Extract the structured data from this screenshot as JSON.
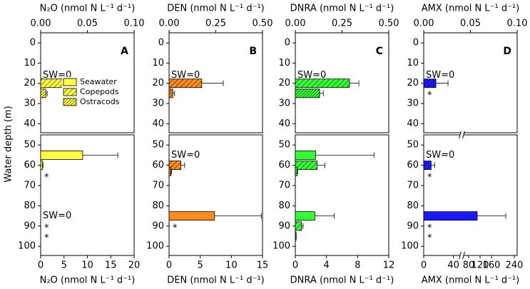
{
  "chart_data": {
    "type": "bar",
    "ylabel": "Water depth (m)",
    "upper_ylim": [
      -5,
      44.5
    ],
    "upper_yticks": [
      0,
      10,
      20,
      30,
      40
    ],
    "lower_ylim": [
      45,
      104.5
    ],
    "lower_yticks": [
      50,
      60,
      70,
      80,
      90,
      100
    ],
    "legend": [
      {
        "name": "Seawater"
      },
      {
        "name": "Copepods"
      },
      {
        "name": "Ostracods"
      }
    ],
    "panels": [
      {
        "label": "A",
        "color": "#ffff40",
        "top_xlabel": "N₂O (nmol N L⁻¹ d⁻¹)",
        "top_xlim": [
          0,
          0.1
        ],
        "top_xticks": [
          {
            "value": 0,
            "label": "0.00"
          },
          {
            "value": 0.05,
            "label": "0.05"
          },
          {
            "value": 0.1,
            "label": "0.10"
          }
        ],
        "bottom_xlabel": "N₂O (nmol N L⁻¹ d⁻¹)",
        "bottom_xlim": [
          0,
          20
        ],
        "bottom_xticks": [
          0,
          5,
          10,
          15,
          20
        ],
        "upper": {
          "bars": [
            {
              "kind": 1,
              "depth": 20,
              "value": 0.035,
              "error": 0.0065
            },
            {
              "kind": 2,
              "depth": 25,
              "value": 0.0055,
              "error": 0.0015
            }
          ],
          "annotations": [
            {
              "text": "SW=0",
              "depth": 16
            }
          ]
        },
        "lower": {
          "bars": [
            {
              "kind": 0,
              "depth": 55,
              "value": 9,
              "error": 7.5
            },
            {
              "kind": 1,
              "depth": 60,
              "value": 0.4,
              "error": 0.1
            }
          ],
          "annotations": [
            {
              "text": "*",
              "depth": 65
            },
            {
              "text": "SW=0",
              "depth": 85
            },
            {
              "text": "*",
              "depth": 90
            },
            {
              "text": "*",
              "depth": 95
            }
          ]
        }
      },
      {
        "label": "B",
        "color": "#ff8c1a",
        "top_xlabel": "DEN (nmol N L⁻¹ d⁻¹)",
        "top_xlim": [
          0,
          0.5
        ],
        "top_xticks": [
          {
            "value": 0,
            "label": "0.00"
          },
          {
            "value": 0.25,
            "label": "0.25"
          },
          {
            "value": 0.5,
            "label": "0.50"
          }
        ],
        "bottom_xlabel": "DEN (nmol N L⁻¹ d⁻¹)",
        "bottom_xlim": [
          0,
          15
        ],
        "bottom_xticks": [
          0,
          5,
          10,
          15
        ],
        "upper": {
          "bars": [
            {
              "kind": 1,
              "depth": 20,
              "value": 0.175,
              "error": 0.115
            },
            {
              "kind": 2,
              "depth": 25,
              "value": 0.02,
              "error": 0.01
            }
          ],
          "annotations": [
            {
              "text": "SW=0",
              "depth": 16
            }
          ]
        },
        "lower": {
          "bars": [
            {
              "kind": 1,
              "depth": 60,
              "value": 1.9,
              "error": 0.6
            },
            {
              "kind": 2,
              "depth": 63,
              "value": 0.3,
              "error": 0.1
            },
            {
              "kind": 0,
              "depth": 85,
              "value": 7.3,
              "error": 7.5
            }
          ],
          "annotations": [
            {
              "text": "SW=0",
              "depth": 55
            },
            {
              "text": "*",
              "depth": 90
            }
          ]
        }
      },
      {
        "label": "C",
        "color": "#33ff33",
        "top_xlabel": "DNRA (nmol N L⁻¹ d⁻¹)",
        "top_xlim": [
          0,
          0.5
        ],
        "top_xticks": [
          {
            "value": 0,
            "label": "0.00"
          },
          {
            "value": 0.25,
            "label": "0.25"
          },
          {
            "value": 0.5,
            "label": "0.50"
          }
        ],
        "bottom_xlabel": "DNRA (nmol N L⁻¹ d⁻¹)",
        "bottom_xlim": [
          0,
          12
        ],
        "bottom_xticks": [
          0,
          4,
          8,
          12
        ],
        "upper": {
          "bars": [
            {
              "kind": 1,
              "depth": 20,
              "value": 0.29,
              "error": 0.05
            },
            {
              "kind": 2,
              "depth": 25,
              "value": 0.13,
              "error": 0.02
            }
          ],
          "annotations": [
            {
              "text": "SW=0",
              "depth": 16
            }
          ]
        },
        "lower": {
          "bars": [
            {
              "kind": 0,
              "depth": 55,
              "value": 2.6,
              "error": 7.5
            },
            {
              "kind": 1,
              "depth": 60,
              "value": 2.8,
              "error": 1
            },
            {
              "kind": 2,
              "depth": 63,
              "value": 0.25,
              "error": 0.05
            },
            {
              "kind": 0,
              "depth": 85,
              "value": 2.5,
              "error": 2.5
            },
            {
              "kind": 1,
              "depth": 90,
              "value": 0.8,
              "error": 0.2
            },
            {
              "kind": 2,
              "depth": 95,
              "value": 0.1,
              "error": 0.02
            }
          ],
          "annotations": []
        }
      },
      {
        "label": "D",
        "color": "#1a1aff",
        "top_xlabel": "AMX (nmol N L⁻¹ d⁻¹)",
        "top_xlim": [
          0,
          0.1
        ],
        "top_xticks": [
          {
            "value": 0,
            "label": "0.00"
          },
          {
            "value": 0.05,
            "label": "0.05"
          },
          {
            "value": 0.1,
            "label": "0.10"
          }
        ],
        "bottom_xlabel": "AMX (nmol N L⁻¹ d⁻¹)",
        "bottom_xlim": [
          0,
          50
        ],
        "bottom_xticks": [
          0,
          40
        ],
        "bottom_xlim2": [
          60,
          250
        ],
        "bottom_xticks2": [
          80,
          120,
          160,
          240
        ],
        "upper": {
          "bars": [
            {
              "kind": 1,
              "depth": 20,
              "value": 0.013,
              "error": 0.013
            }
          ],
          "annotations": [
            {
              "text": "SW=0",
              "depth": 16
            },
            {
              "text": "*",
              "depth": 25
            }
          ]
        },
        "lower": {
          "bars": [
            {
              "kind": 1,
              "depth": 60,
              "value": 10,
              "error": 5
            },
            {
              "kind": 0,
              "depth": 85,
              "value": 110,
              "error": 100
            }
          ],
          "annotations": [
            {
              "text": "SW=0",
              "depth": 55
            },
            {
              "text": "*",
              "depth": 65
            },
            {
              "text": "*",
              "depth": 90
            },
            {
              "text": "*",
              "depth": 95
            }
          ]
        }
      }
    ]
  }
}
